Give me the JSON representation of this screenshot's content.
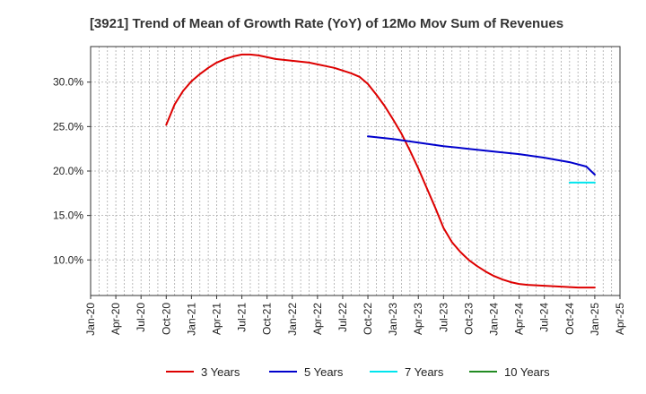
{
  "chart_data": {
    "type": "line",
    "title": "[3921]  Trend of Mean of Growth Rate (YoY) of 12Mo Mov Sum of Revenues",
    "xlabel": "",
    "ylabel": "",
    "x_ticks": [
      "Jan-20",
      "Apr-20",
      "Jul-20",
      "Oct-20",
      "Jan-21",
      "Apr-21",
      "Jul-21",
      "Oct-21",
      "Jan-22",
      "Apr-22",
      "Jul-22",
      "Oct-22",
      "Jan-23",
      "Apr-23",
      "Jul-23",
      "Oct-23",
      "Jan-24",
      "Apr-24",
      "Jul-24",
      "Oct-24",
      "Jan-25",
      "Apr-25"
    ],
    "y_ticks": [
      "10.0%",
      "15.0%",
      "20.0%",
      "25.0%",
      "30.0%"
    ],
    "y_tick_values": [
      10,
      15,
      20,
      25,
      30
    ],
    "xlim": [
      0,
      63
    ],
    "ylim": [
      6.0,
      34.0
    ],
    "grid": true,
    "legend_position": "bottom",
    "series": [
      {
        "name": "3 Years",
        "color": "#dd0000",
        "x": [
          9,
          10,
          11,
          12,
          13,
          14,
          15,
          16,
          17,
          18,
          19,
          20,
          21,
          22,
          23,
          24,
          25,
          26,
          27,
          28,
          29,
          30,
          31,
          32,
          33,
          34,
          35,
          36,
          37,
          38,
          39,
          40,
          41,
          42,
          43,
          44,
          45,
          46,
          47,
          48,
          49,
          50,
          51,
          52,
          53,
          54,
          55,
          56,
          57,
          58,
          59,
          60
        ],
        "y": [
          25.2,
          27.5,
          29.0,
          30.1,
          30.9,
          31.6,
          32.2,
          32.6,
          32.9,
          33.1,
          33.1,
          33.0,
          32.8,
          32.6,
          32.5,
          32.4,
          32.3,
          32.2,
          32.0,
          31.8,
          31.6,
          31.3,
          31.0,
          30.6,
          29.8,
          28.6,
          27.3,
          25.8,
          24.2,
          22.3,
          20.3,
          18.1,
          15.9,
          13.6,
          12.0,
          10.9,
          10.0,
          9.3,
          8.7,
          8.2,
          7.8,
          7.5,
          7.3,
          7.2,
          7.15,
          7.1,
          7.05,
          7.0,
          6.95,
          6.9,
          6.9,
          6.9
        ]
      },
      {
        "name": "5 Years",
        "color": "#0000cc",
        "x": [
          33,
          36,
          39,
          42,
          45,
          48,
          51,
          54,
          57,
          59,
          60
        ],
        "y": [
          23.9,
          23.6,
          23.2,
          22.8,
          22.5,
          22.2,
          21.9,
          21.5,
          21.0,
          20.5,
          19.6
        ]
      },
      {
        "name": "7 Years",
        "color": "#00e5ee",
        "x": [
          57,
          58,
          59,
          60
        ],
        "y": [
          18.7,
          18.7,
          18.7,
          18.7
        ]
      },
      {
        "name": "10 Years",
        "color": "#228b22",
        "x": [],
        "y": []
      }
    ]
  }
}
